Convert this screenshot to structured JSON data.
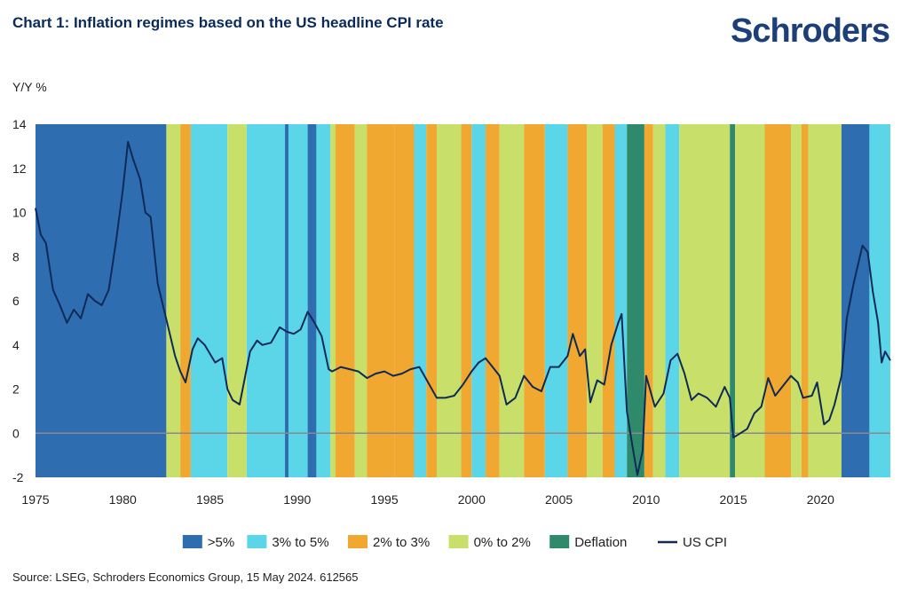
{
  "header": {
    "title": "Chart 1: Inflation regimes based on the US headline CPI rate",
    "logo": "Schroders"
  },
  "footer": {
    "source": "Source: LSEG, Schroders Economics Group, 15 May 2024. 612565"
  },
  "chart_data": {
    "type": "line",
    "title": "Chart 1: Inflation regimes based on the US headline CPI rate",
    "ylabel": "Y/Y %",
    "xlabel": "",
    "xlim": [
      1975,
      2024.0
    ],
    "ylim": [
      -2,
      14
    ],
    "x_ticks": [
      "1975",
      "1980",
      "1985",
      "1990",
      "1995",
      "2000",
      "2005",
      "2010",
      "2015",
      "2020"
    ],
    "y_ticks": [
      "14",
      "12",
      "10",
      "8",
      "6",
      "4",
      "2",
      "0",
      "-2"
    ],
    "zero_line": true,
    "legend_position": "bottom",
    "colors": {
      ">5%": "#2e6db0",
      "3% to 5%": "#5ad6e8",
      "2% to 3%": "#f0a830",
      "0% to 2%": "#c8e06a",
      "Deflation": "#2f8a6c",
      "US CPI": "#0f2a57"
    },
    "legend": [
      ">5%",
      "3% to 5%",
      "2% to 3%",
      "0% to 2%",
      "Deflation",
      "US CPI"
    ],
    "regimes": [
      {
        "start": 1975.0,
        "end": 1982.5,
        "regime": ">5%"
      },
      {
        "start": 1982.5,
        "end": 1983.3,
        "regime": "0% to 2%"
      },
      {
        "start": 1983.3,
        "end": 1983.9,
        "regime": "2% to 3%"
      },
      {
        "start": 1983.9,
        "end": 1986.0,
        "regime": "3% to 5%"
      },
      {
        "start": 1986.0,
        "end": 1987.1,
        "regime": "0% to 2%"
      },
      {
        "start": 1987.1,
        "end": 1989.3,
        "regime": "3% to 5%"
      },
      {
        "start": 1989.3,
        "end": 1989.5,
        "regime": ">5%"
      },
      {
        "start": 1989.5,
        "end": 1990.6,
        "regime": "3% to 5%"
      },
      {
        "start": 1990.6,
        "end": 1991.1,
        "regime": ">5%"
      },
      {
        "start": 1991.1,
        "end": 1991.9,
        "regime": "3% to 5%"
      },
      {
        "start": 1991.9,
        "end": 1992.2,
        "regime": "0% to 2%"
      },
      {
        "start": 1992.2,
        "end": 1993.3,
        "regime": "2% to 3%"
      },
      {
        "start": 1993.3,
        "end": 1994.0,
        "regime": "0% to 2%"
      },
      {
        "start": 1994.0,
        "end": 1995.6,
        "regime": "2% to 3%"
      },
      {
        "start": 1995.6,
        "end": 1996.7,
        "regime": "2% to 3%"
      },
      {
        "start": 1996.7,
        "end": 1997.4,
        "regime": "3% to 5%"
      },
      {
        "start": 1997.4,
        "end": 1998.0,
        "regime": "2% to 3%"
      },
      {
        "start": 1998.0,
        "end": 1999.4,
        "regime": "0% to 2%"
      },
      {
        "start": 1999.4,
        "end": 2000.0,
        "regime": "2% to 3%"
      },
      {
        "start": 2000.0,
        "end": 2000.8,
        "regime": "3% to 5%"
      },
      {
        "start": 2000.8,
        "end": 2001.6,
        "regime": "2% to 3%"
      },
      {
        "start": 2001.6,
        "end": 2003.0,
        "regime": "0% to 2%"
      },
      {
        "start": 2003.0,
        "end": 2004.2,
        "regime": "2% to 3%"
      },
      {
        "start": 2004.2,
        "end": 2005.5,
        "regime": "3% to 5%"
      },
      {
        "start": 2005.5,
        "end": 2006.6,
        "regime": "2% to 3%"
      },
      {
        "start": 2006.6,
        "end": 2007.5,
        "regime": "0% to 2%"
      },
      {
        "start": 2007.5,
        "end": 2008.2,
        "regime": "2% to 3%"
      },
      {
        "start": 2008.2,
        "end": 2008.9,
        "regime": "3% to 5%"
      },
      {
        "start": 2008.9,
        "end": 2009.9,
        "regime": "Deflation"
      },
      {
        "start": 2009.9,
        "end": 2010.4,
        "regime": "2% to 3%"
      },
      {
        "start": 2010.4,
        "end": 2011.1,
        "regime": "0% to 2%"
      },
      {
        "start": 2011.1,
        "end": 2011.9,
        "regime": "3% to 5%"
      },
      {
        "start": 2011.9,
        "end": 2014.8,
        "regime": "0% to 2%"
      },
      {
        "start": 2014.8,
        "end": 2015.1,
        "regime": "Deflation"
      },
      {
        "start": 2015.1,
        "end": 2016.8,
        "regime": "0% to 2%"
      },
      {
        "start": 2016.8,
        "end": 2018.3,
        "regime": "2% to 3%"
      },
      {
        "start": 2018.3,
        "end": 2018.9,
        "regime": "0% to 2%"
      },
      {
        "start": 2018.9,
        "end": 2019.3,
        "regime": "2% to 3%"
      },
      {
        "start": 2019.3,
        "end": 2021.2,
        "regime": "0% to 2%"
      },
      {
        "start": 2021.2,
        "end": 2022.8,
        "regime": ">5%"
      },
      {
        "start": 2022.8,
        "end": 2024.0,
        "regime": "3% to 5%"
      }
    ],
    "series": [
      {
        "name": "US CPI",
        "points": [
          [
            1975.0,
            10.2
          ],
          [
            1975.3,
            9.0
          ],
          [
            1975.6,
            8.6
          ],
          [
            1976.0,
            6.5
          ],
          [
            1976.4,
            5.8
          ],
          [
            1976.8,
            5.0
          ],
          [
            1977.2,
            5.6
          ],
          [
            1977.6,
            5.2
          ],
          [
            1978.0,
            6.3
          ],
          [
            1978.4,
            6.0
          ],
          [
            1978.8,
            5.8
          ],
          [
            1979.2,
            6.5
          ],
          [
            1979.6,
            8.6
          ],
          [
            1980.0,
            11.0
          ],
          [
            1980.3,
            13.2
          ],
          [
            1980.6,
            12.4
          ],
          [
            1981.0,
            11.5
          ],
          [
            1981.3,
            10.0
          ],
          [
            1981.6,
            9.8
          ],
          [
            1982.0,
            6.8
          ],
          [
            1982.3,
            5.8
          ],
          [
            1982.7,
            4.5
          ],
          [
            1983.0,
            3.5
          ],
          [
            1983.3,
            2.8
          ],
          [
            1983.6,
            2.3
          ],
          [
            1984.0,
            3.8
          ],
          [
            1984.3,
            4.3
          ],
          [
            1984.7,
            4.0
          ],
          [
            1985.0,
            3.6
          ],
          [
            1985.3,
            3.2
          ],
          [
            1985.7,
            3.4
          ],
          [
            1986.0,
            2.0
          ],
          [
            1986.3,
            1.5
          ],
          [
            1986.7,
            1.3
          ],
          [
            1987.0,
            2.5
          ],
          [
            1987.3,
            3.7
          ],
          [
            1987.7,
            4.2
          ],
          [
            1988.0,
            4.0
          ],
          [
            1988.5,
            4.1
          ],
          [
            1989.0,
            4.8
          ],
          [
            1989.4,
            4.6
          ],
          [
            1989.8,
            4.5
          ],
          [
            1990.2,
            4.7
          ],
          [
            1990.6,
            5.5
          ],
          [
            1991.0,
            5.0
          ],
          [
            1991.4,
            4.4
          ],
          [
            1991.8,
            2.9
          ],
          [
            1992.0,
            2.8
          ],
          [
            1992.5,
            3.0
          ],
          [
            1993.0,
            2.9
          ],
          [
            1993.5,
            2.8
          ],
          [
            1994.0,
            2.5
          ],
          [
            1994.5,
            2.7
          ],
          [
            1995.0,
            2.8
          ],
          [
            1995.5,
            2.6
          ],
          [
            1996.0,
            2.7
          ],
          [
            1996.5,
            2.9
          ],
          [
            1997.0,
            3.0
          ],
          [
            1997.5,
            2.3
          ],
          [
            1998.0,
            1.6
          ],
          [
            1998.5,
            1.6
          ],
          [
            1999.0,
            1.7
          ],
          [
            1999.5,
            2.2
          ],
          [
            2000.0,
            2.8
          ],
          [
            2000.4,
            3.2
          ],
          [
            2000.8,
            3.4
          ],
          [
            2001.2,
            3.0
          ],
          [
            2001.6,
            2.6
          ],
          [
            2002.0,
            1.3
          ],
          [
            2002.5,
            1.6
          ],
          [
            2003.0,
            2.6
          ],
          [
            2003.5,
            2.1
          ],
          [
            2004.0,
            1.9
          ],
          [
            2004.5,
            3.0
          ],
          [
            2005.0,
            3.0
          ],
          [
            2005.5,
            3.5
          ],
          [
            2005.8,
            4.5
          ],
          [
            2006.2,
            3.5
          ],
          [
            2006.5,
            3.8
          ],
          [
            2006.8,
            1.4
          ],
          [
            2007.2,
            2.4
          ],
          [
            2007.6,
            2.2
          ],
          [
            2008.0,
            4.0
          ],
          [
            2008.4,
            5.0
          ],
          [
            2008.6,
            5.4
          ],
          [
            2008.9,
            1.0
          ],
          [
            2009.2,
            -0.5
          ],
          [
            2009.5,
            -1.9
          ],
          [
            2009.8,
            -0.8
          ],
          [
            2010.0,
            2.6
          ],
          [
            2010.5,
            1.2
          ],
          [
            2011.0,
            1.8
          ],
          [
            2011.4,
            3.3
          ],
          [
            2011.8,
            3.6
          ],
          [
            2012.2,
            2.7
          ],
          [
            2012.6,
            1.5
          ],
          [
            2013.0,
            1.8
          ],
          [
            2013.5,
            1.6
          ],
          [
            2014.0,
            1.2
          ],
          [
            2014.5,
            2.1
          ],
          [
            2014.8,
            1.6
          ],
          [
            2015.0,
            -0.2
          ],
          [
            2015.4,
            0.0
          ],
          [
            2015.8,
            0.2
          ],
          [
            2016.2,
            0.9
          ],
          [
            2016.6,
            1.2
          ],
          [
            2017.0,
            2.5
          ],
          [
            2017.4,
            1.7
          ],
          [
            2017.8,
            2.1
          ],
          [
            2018.3,
            2.6
          ],
          [
            2018.7,
            2.3
          ],
          [
            2019.0,
            1.6
          ],
          [
            2019.5,
            1.7
          ],
          [
            2019.8,
            2.3
          ],
          [
            2020.2,
            0.4
          ],
          [
            2020.5,
            0.6
          ],
          [
            2020.8,
            1.3
          ],
          [
            2021.2,
            2.6
          ],
          [
            2021.5,
            5.2
          ],
          [
            2021.9,
            6.8
          ],
          [
            2022.4,
            8.5
          ],
          [
            2022.7,
            8.2
          ],
          [
            2023.0,
            6.4
          ],
          [
            2023.3,
            5.0
          ],
          [
            2023.5,
            3.2
          ],
          [
            2023.7,
            3.7
          ],
          [
            2024.0,
            3.3
          ]
        ]
      }
    ]
  }
}
